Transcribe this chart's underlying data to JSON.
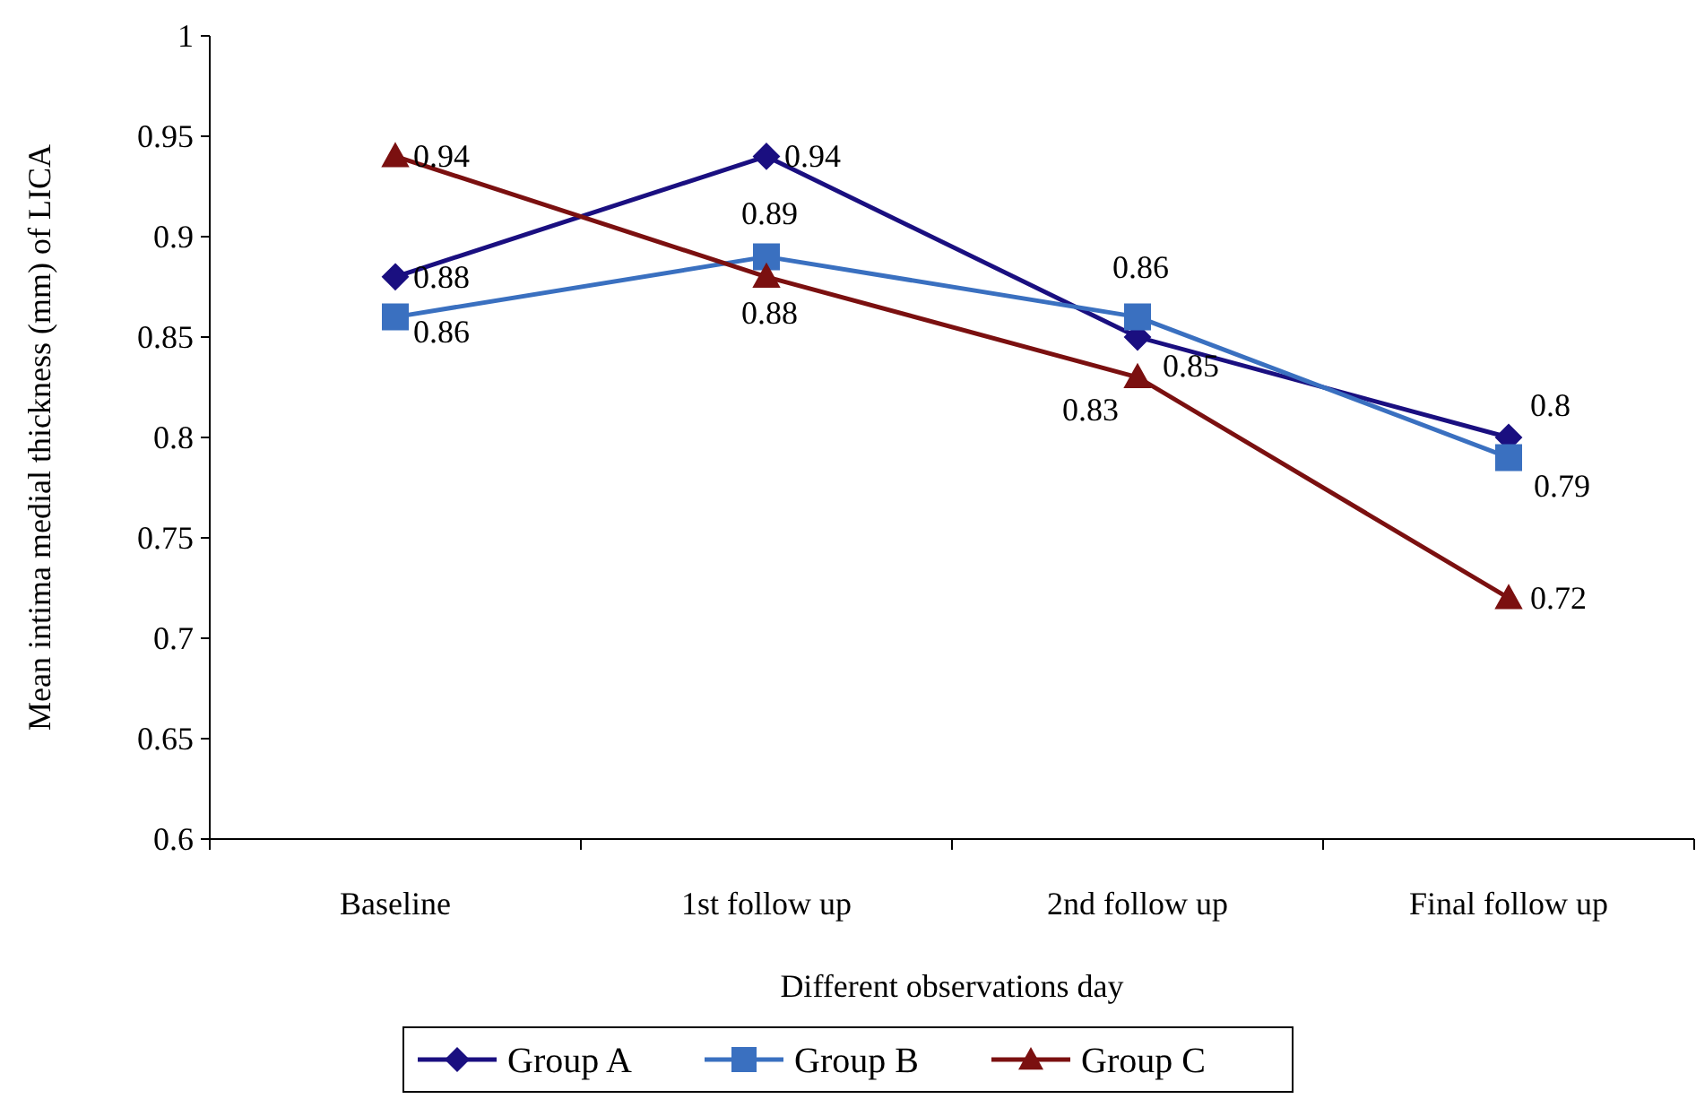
{
  "chart_data": {
    "type": "line",
    "xlabel": "Different observations day",
    "ylabel": "Mean intima medial thickness (mm) of LICA",
    "categories": [
      "Baseline",
      "1st follow up",
      "2nd follow up",
      "Final follow up"
    ],
    "series": [
      {
        "name": "Group A",
        "color": "#1a0f80",
        "marker": "diamond",
        "values": [
          0.88,
          0.94,
          0.85,
          0.8
        ]
      },
      {
        "name": "Group B",
        "color": "#3a70c0",
        "marker": "square",
        "values": [
          0.86,
          0.89,
          0.86,
          0.79
        ]
      },
      {
        "name": "Group C",
        "color": "#7b1010",
        "marker": "triangle",
        "values": [
          0.94,
          0.88,
          0.83,
          0.72
        ]
      }
    ],
    "ylim": [
      0.6,
      1
    ],
    "yticks": [
      0.6,
      0.65,
      0.7,
      0.75,
      0.8,
      0.85,
      0.9,
      0.95,
      1
    ],
    "data_labels": true,
    "legend": "bottom",
    "grid": false
  }
}
